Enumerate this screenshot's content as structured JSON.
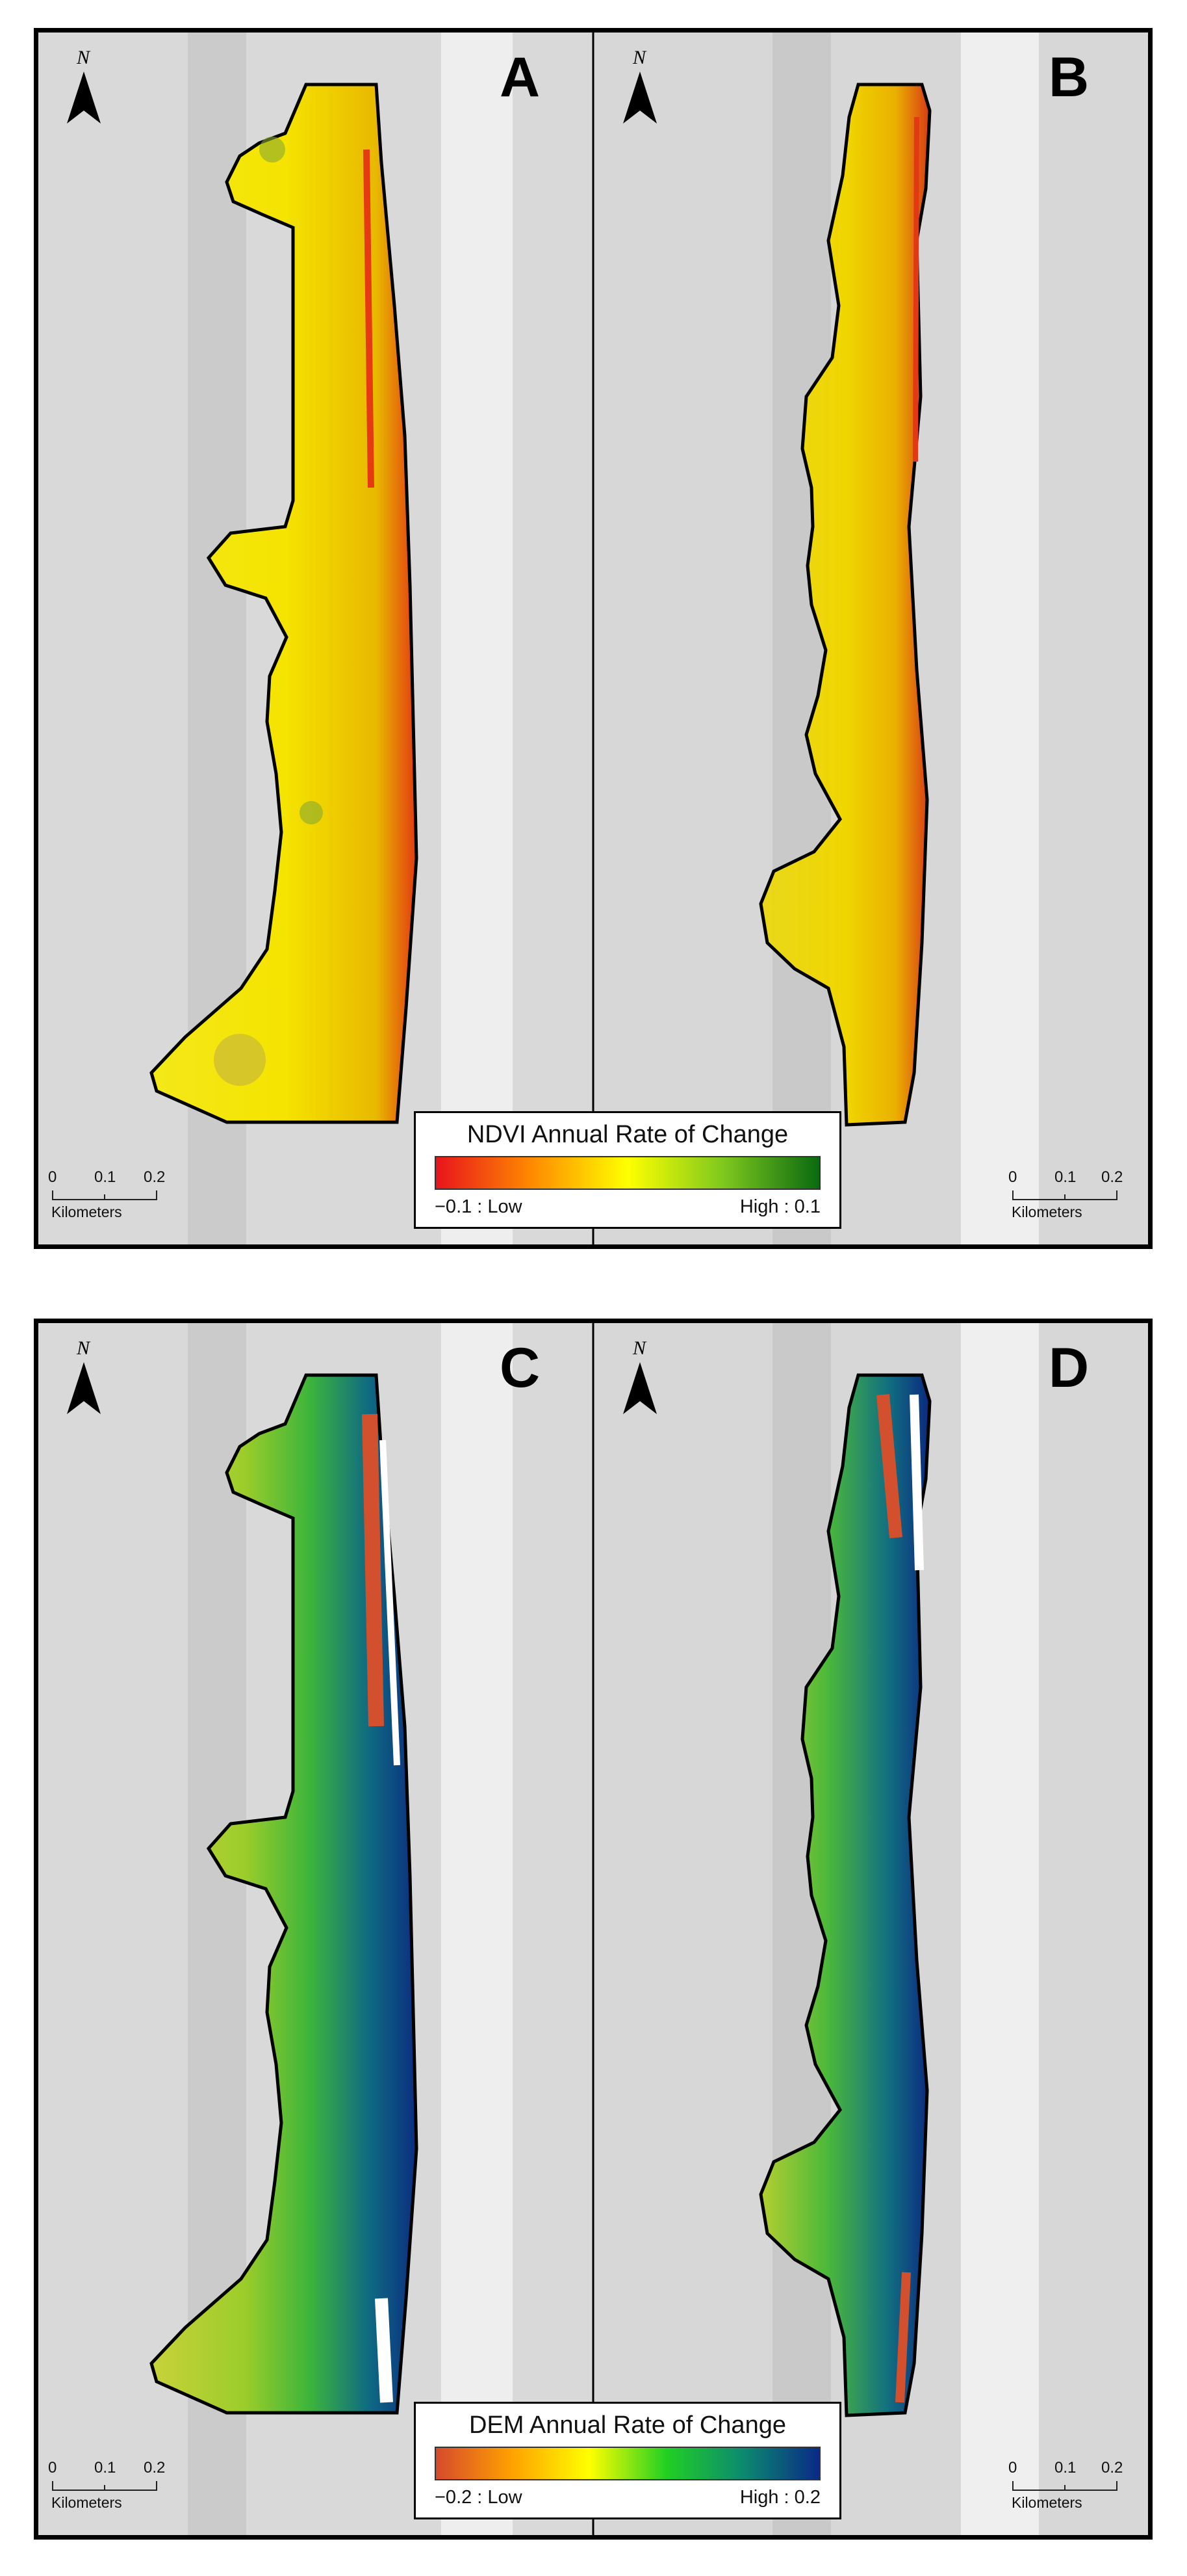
{
  "figures": [
    {
      "id": "ndvi",
      "panels": [
        {
          "letter": "A",
          "north_label": "N"
        },
        {
          "letter": "B",
          "north_label": "N"
        }
      ],
      "legend": {
        "title": "NDVI Annual Rate of Change",
        "low_label": "−0.1 : Low",
        "high_label": "High : 0.1",
        "colors": [
          "#e8141c",
          "#ff8a00",
          "#ffff00",
          "#7ec81e",
          "#0a6a10"
        ]
      },
      "scale_bar": {
        "ticks": [
          "0",
          "0.1",
          "0.2"
        ],
        "unit": "Kilometers"
      }
    },
    {
      "id": "dem",
      "panels": [
        {
          "letter": "C",
          "north_label": "N"
        },
        {
          "letter": "D",
          "north_label": "N"
        }
      ],
      "legend": {
        "title": "DEM Annual Rate of Change",
        "low_label": "−0.2 : Low",
        "high_label": "High : 0.2",
        "colors": [
          "#d64a2c",
          "#ffa200",
          "#ffff00",
          "#22d022",
          "#0c8a70",
          "#0a2a86"
        ]
      },
      "scale_bar": {
        "ticks": [
          "0",
          "0.1",
          "0.2"
        ],
        "unit": "Kilometers"
      }
    }
  ]
}
